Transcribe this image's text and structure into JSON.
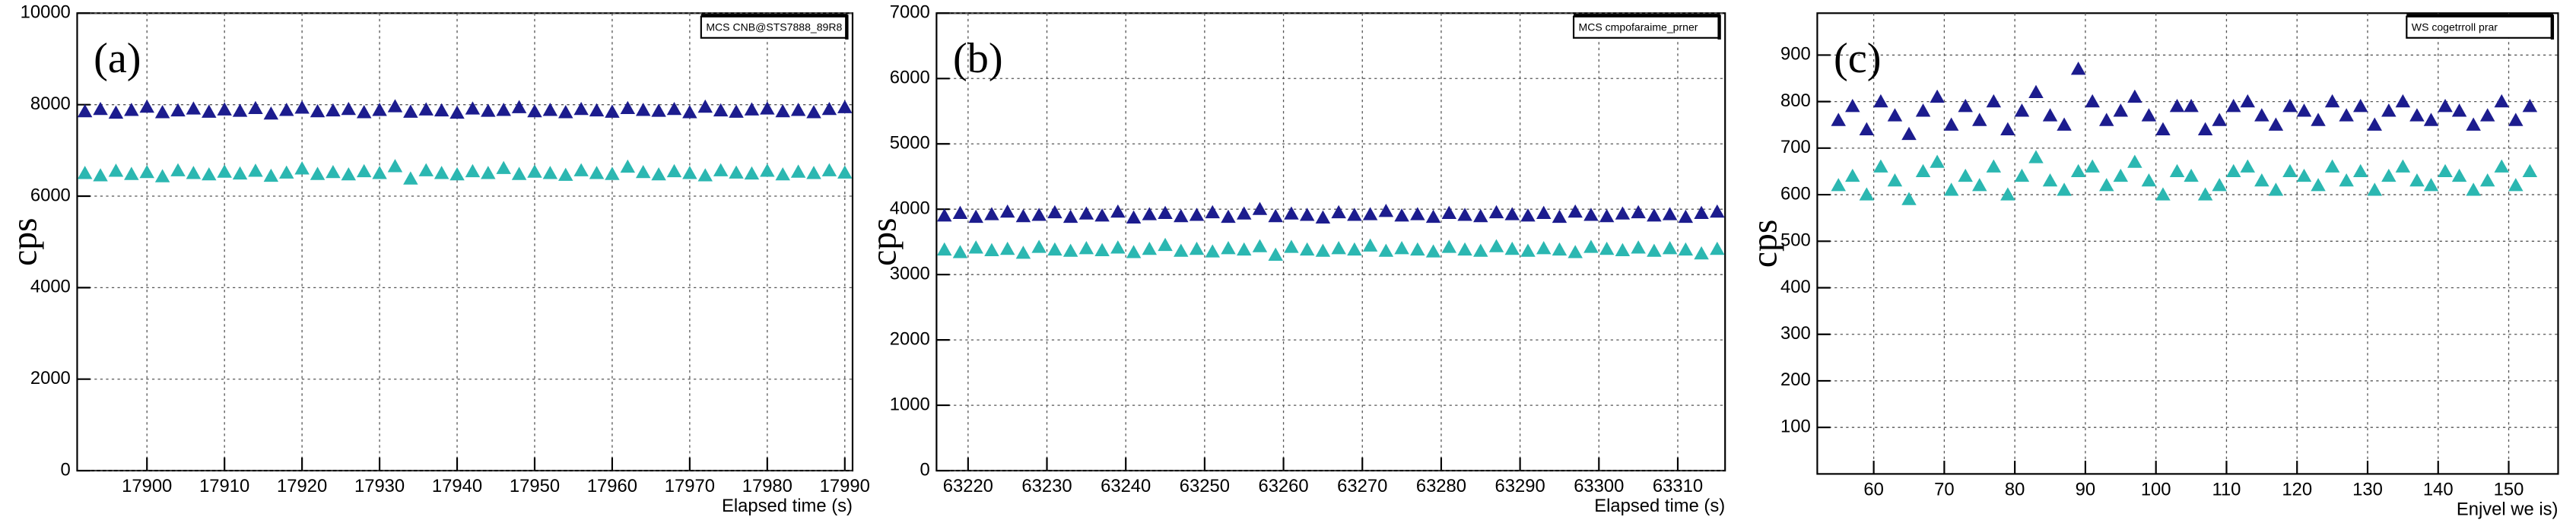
{
  "chart_data": [
    {
      "type": "scatter",
      "panel_label": "(a)",
      "annotation": "MCS CNB@STS7888_89R8",
      "y_label": "cps",
      "x_label": "Elapsed time (s)",
      "xlim": [
        17891,
        17991
      ],
      "xticks": [
        17900,
        17910,
        17920,
        17930,
        17940,
        17950,
        17960,
        17970,
        17980,
        17990
      ],
      "ylim": [
        0,
        10000
      ],
      "yticks": [
        0,
        2000,
        4000,
        6000,
        8000,
        10000
      ],
      "grid": true,
      "x": [
        17892,
        17894,
        17896,
        17898,
        17900,
        17902,
        17904,
        17906,
        17908,
        17910,
        17912,
        17914,
        17916,
        17918,
        17920,
        17922,
        17924,
        17926,
        17928,
        17930,
        17932,
        17934,
        17936,
        17938,
        17940,
        17942,
        17944,
        17946,
        17948,
        17950,
        17952,
        17954,
        17956,
        17958,
        17960,
        17962,
        17964,
        17966,
        17968,
        17970,
        17972,
        17974,
        17976,
        17978,
        17980,
        17982,
        17984,
        17986,
        17988,
        17990
      ],
      "series": [
        {
          "color": "#1c1c8e",
          "values": [
            7850,
            7900,
            7820,
            7880,
            7950,
            7830,
            7870,
            7910,
            7840,
            7890,
            7860,
            7920,
            7800,
            7880,
            7930,
            7850,
            7870,
            7900,
            7830,
            7880,
            7960,
            7840,
            7890,
            7870,
            7820,
            7910,
            7860,
            7880,
            7940,
            7850,
            7880,
            7830,
            7900,
            7870,
            7840,
            7920,
            7880,
            7860,
            7900,
            7830,
            7950,
            7870,
            7840,
            7890,
            7910,
            7850,
            7880,
            7830,
            7900,
            7940
          ]
        },
        {
          "color": "#2bb7b1",
          "values": [
            6500,
            6450,
            6550,
            6480,
            6520,
            6430,
            6560,
            6500,
            6470,
            6530,
            6490,
            6550,
            6440,
            6510,
            6600,
            6480,
            6520,
            6470,
            6540,
            6500,
            6650,
            6380,
            6560,
            6500,
            6470,
            6540,
            6500,
            6610,
            6480,
            6530,
            6500,
            6460,
            6560,
            6500,
            6480,
            6640,
            6520,
            6470,
            6540,
            6500,
            6450,
            6560,
            6510,
            6490,
            6550,
            6470,
            6530,
            6500,
            6560,
            6510
          ]
        }
      ]
    },
    {
      "type": "scatter",
      "panel_label": "(b)",
      "annotation": "MCS cmpofaraime_prner",
      "y_label": "cps",
      "x_label": "Elapsed time (s)",
      "xlim": [
        63216,
        63316
      ],
      "xticks": [
        63220,
        63230,
        63240,
        63250,
        63260,
        63270,
        63280,
        63290,
        63300,
        63310
      ],
      "ylim": [
        0,
        7000
      ],
      "yticks": [
        0,
        1000,
        2000,
        3000,
        4000,
        5000,
        6000,
        7000
      ],
      "grid": true,
      "x": [
        63217,
        63219,
        63221,
        63223,
        63225,
        63227,
        63229,
        63231,
        63233,
        63235,
        63237,
        63239,
        63241,
        63243,
        63245,
        63247,
        63249,
        63251,
        63253,
        63255,
        63257,
        63259,
        63261,
        63263,
        63265,
        63267,
        63269,
        63271,
        63273,
        63275,
        63277,
        63279,
        63281,
        63283,
        63285,
        63287,
        63289,
        63291,
        63293,
        63295,
        63297,
        63299,
        63301,
        63303,
        63305,
        63307,
        63309,
        63311,
        63313,
        63315
      ],
      "series": [
        {
          "color": "#1c1c8e",
          "values": [
            3900,
            3940,
            3880,
            3920,
            3960,
            3890,
            3910,
            3950,
            3880,
            3930,
            3900,
            3960,
            3870,
            3920,
            3940,
            3890,
            3910,
            3950,
            3880,
            3930,
            4000,
            3890,
            3930,
            3910,
            3870,
            3950,
            3910,
            3920,
            3970,
            3900,
            3920,
            3880,
            3940,
            3910,
            3890,
            3950,
            3920,
            3900,
            3940,
            3880,
            3960,
            3910,
            3890,
            3930,
            3950,
            3900,
            3920,
            3880,
            3940,
            3960
          ]
        },
        {
          "color": "#2bb7b1",
          "values": [
            3380,
            3340,
            3410,
            3370,
            3390,
            3330,
            3420,
            3380,
            3360,
            3400,
            3370,
            3410,
            3340,
            3390,
            3450,
            3360,
            3390,
            3350,
            3400,
            3380,
            3430,
            3300,
            3420,
            3380,
            3360,
            3400,
            3380,
            3440,
            3360,
            3400,
            3380,
            3350,
            3420,
            3380,
            3360,
            3430,
            3390,
            3360,
            3400,
            3380,
            3340,
            3420,
            3390,
            3370,
            3410,
            3360,
            3400,
            3380,
            3320,
            3390
          ]
        }
      ]
    },
    {
      "type": "scatter",
      "panel_label": "(c)",
      "annotation": "WS cogetrroll prar",
      "y_label": "cps",
      "x_label": "Enjvel we is)",
      "xlim": [
        52,
        157
      ],
      "xticks": [
        60,
        70,
        80,
        90,
        100,
        110,
        120,
        130,
        140,
        150
      ],
      "ylim": [
        0,
        990
      ],
      "yticks": [
        100,
        200,
        300,
        400,
        500,
        600,
        700,
        800,
        900
      ],
      "grid": true,
      "x": [
        55,
        57,
        59,
        61,
        63,
        65,
        67,
        69,
        71,
        73,
        75,
        77,
        79,
        81,
        83,
        85,
        87,
        89,
        91,
        93,
        95,
        97,
        99,
        101,
        103,
        105,
        107,
        109,
        111,
        113,
        115,
        117,
        119,
        121,
        123,
        125,
        127,
        129,
        131,
        133,
        135,
        137,
        139,
        141,
        143,
        145,
        147,
        149,
        151,
        153
      ],
      "series": [
        {
          "color": "#1c1c8e",
          "values": [
            760,
            790,
            740,
            800,
            770,
            730,
            780,
            810,
            750,
            790,
            760,
            800,
            740,
            780,
            820,
            770,
            750,
            870,
            800,
            760,
            780,
            810,
            770,
            740,
            790,
            790,
            740,
            760,
            790,
            800,
            770,
            750,
            790,
            780,
            760,
            800,
            770,
            790,
            750,
            780,
            800,
            770,
            760,
            790,
            780,
            750,
            770,
            800,
            760,
            790
          ]
        },
        {
          "color": "#2bb7b1",
          "values": [
            620,
            640,
            600,
            660,
            630,
            590,
            650,
            670,
            610,
            640,
            620,
            660,
            600,
            640,
            680,
            630,
            610,
            650,
            660,
            620,
            640,
            670,
            630,
            600,
            650,
            640,
            600,
            620,
            650,
            660,
            630,
            610,
            650,
            640,
            620,
            660,
            630,
            650,
            610,
            640,
            660,
            630,
            620,
            650,
            640,
            610,
            630,
            660,
            620,
            650
          ]
        }
      ]
    }
  ]
}
